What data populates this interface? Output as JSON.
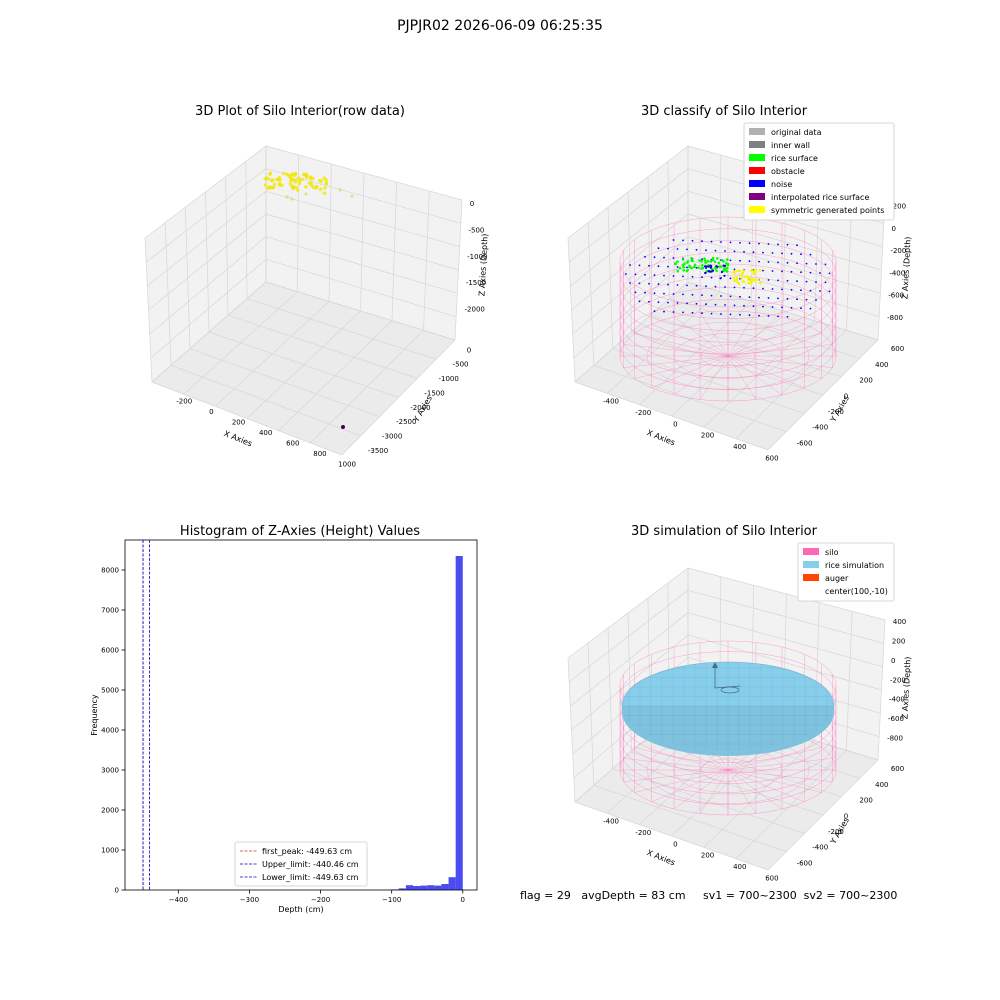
{
  "suptitle": "PJPJR02 2026-06-09 06:25:35",
  "chart_data": [
    {
      "type": "scatter",
      "title": "3D Plot of Silo Interior(row data)",
      "xlabel": "X Axies",
      "ylabel": "Y Axies",
      "zlabel": "Z Axies (Depth)",
      "xticks": [
        "-200",
        "0",
        "200",
        "400",
        "600",
        "800",
        "1000"
      ],
      "yticks": [
        "0",
        "-500",
        "-1000",
        "-1500",
        "-2000",
        "-2500",
        "-3000",
        "-3500"
      ],
      "zticks": [
        "0",
        "-500",
        "-1000",
        "-1500",
        "-2000"
      ],
      "colors": {
        "points": "#f2e600",
        "outlier": "#440154"
      }
    },
    {
      "type": "scatter",
      "title": "3D classify of Silo Interior",
      "xlabel": "X Axies",
      "ylabel": "Y Axies",
      "zlabel": "Z Axies (Depth)",
      "xticks": [
        "-400",
        "-200",
        "0",
        "200",
        "400",
        "600"
      ],
      "yticks": [
        "600",
        "400",
        "200",
        "0",
        "-200",
        "-400",
        "-600"
      ],
      "zticks": [
        "200",
        "0",
        "-200",
        "-400",
        "-600",
        "-800"
      ],
      "legend_position": "top-right",
      "legend": [
        {
          "label": "original data",
          "color": "#b0b0b0"
        },
        {
          "label": "inner wall",
          "color": "#808080"
        },
        {
          "label": "rice surface",
          "color": "#00ff00"
        },
        {
          "label": "obstacle",
          "color": "#ff0000"
        },
        {
          "label": "noise",
          "color": "#0000ff"
        },
        {
          "label": "interpolated rice surface",
          "color": "#800080"
        },
        {
          "label": "symmetric generated points",
          "color": "#ffff00"
        }
      ]
    },
    {
      "type": "histogram",
      "title": "Histogram of Z-Axies (Height) Values",
      "xlabel": "Depth (cm)",
      "ylabel": "Frequency",
      "xlim": [
        -475,
        20
      ],
      "ylim": [
        0,
        8750
      ],
      "xticks": [
        -400,
        -300,
        -200,
        -100,
        0
      ],
      "yticks": [
        0,
        1000,
        2000,
        3000,
        4000,
        5000,
        6000,
        7000,
        8000
      ],
      "bar_color": "#4b4bf0",
      "bins": [
        {
          "x0": -100,
          "x1": -90,
          "count": 15
        },
        {
          "x0": -90,
          "x1": -80,
          "count": 40
        },
        {
          "x0": -80,
          "x1": -70,
          "count": 120
        },
        {
          "x0": -70,
          "x1": -60,
          "count": 100
        },
        {
          "x0": -60,
          "x1": -50,
          "count": 110
        },
        {
          "x0": -50,
          "x1": -40,
          "count": 120
        },
        {
          "x0": -40,
          "x1": -30,
          "count": 110
        },
        {
          "x0": -30,
          "x1": -20,
          "count": 150
        },
        {
          "x0": -20,
          "x1": -10,
          "count": 320
        },
        {
          "x0": -10,
          "x1": 0,
          "count": 8350
        }
      ],
      "vlines": [
        {
          "label": "first_peak: -449.63 cm",
          "x": -449.63,
          "color": "#d62728"
        },
        {
          "label": "Upper_limit: -440.46 cm",
          "x": -440.46,
          "color": "#0000cc"
        },
        {
          "label": "Lower_limit: -449.63 cm",
          "x": -449.63,
          "color": "#0000cc"
        }
      ]
    },
    {
      "type": "surface",
      "title": "3D simulation of Silo Interior",
      "xlabel": "X Axies",
      "ylabel": "Y Axies",
      "zlabel": "Z Axies (Depth)",
      "xticks": [
        "-400",
        "-200",
        "0",
        "200",
        "400",
        "600"
      ],
      "yticks": [
        "600",
        "400",
        "200",
        "0",
        "-200",
        "-400",
        "-600"
      ],
      "zticks": [
        "400",
        "200",
        "0",
        "-200",
        "-400",
        "-600",
        "-800"
      ],
      "legend_position": "top-right",
      "legend": [
        {
          "label": "silo",
          "color": "#ff69b4"
        },
        {
          "label": "rice simulation",
          "color": "#87ceeb"
        },
        {
          "label": "auger",
          "color": "#ff4500"
        },
        {
          "label": "center(100,-10)",
          "color": "#ffffff"
        }
      ]
    }
  ],
  "info": "flag = 29   avgDepth = 83 cm     sv1 = 700~2300  sv2 = 700~2300"
}
